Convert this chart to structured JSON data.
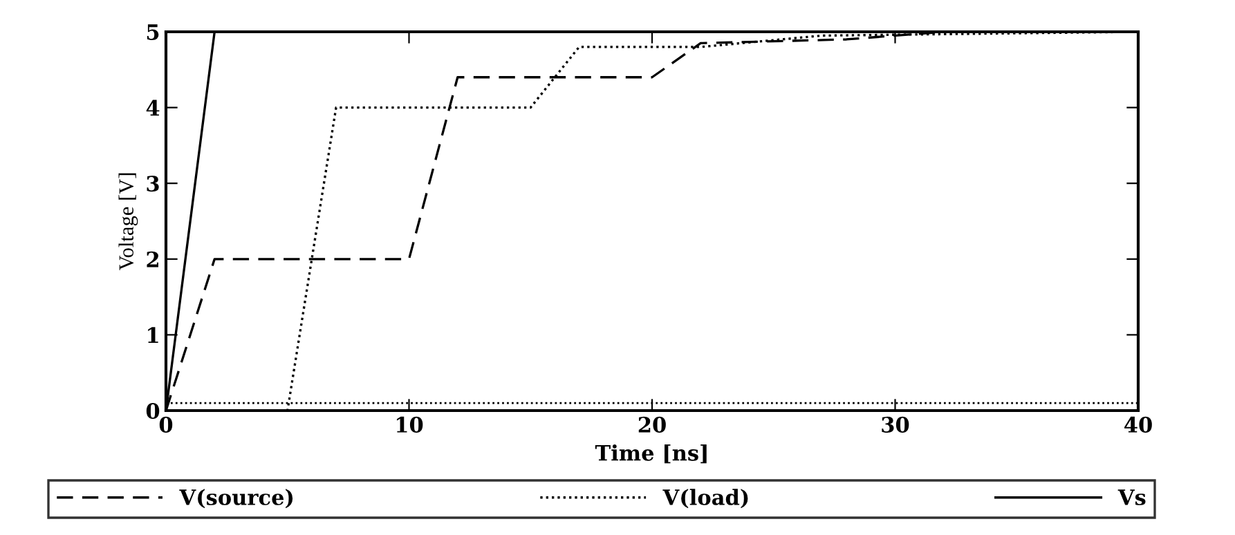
{
  "chart_data": {
    "type": "line",
    "xlabel": "Time [ns]",
    "ylabel": "Voltage [V]",
    "xlim": [
      0,
      40
    ],
    "ylim": [
      0,
      5
    ],
    "xticks": [
      0,
      10,
      20,
      30,
      40
    ],
    "yticks": [
      0,
      1,
      2,
      3,
      4,
      5
    ],
    "legend": "bottom",
    "grid": false,
    "series": [
      {
        "name": "V(source)",
        "color": "#000000",
        "line_style": "dashed",
        "x": [
          0,
          2,
          10,
          12,
          20,
          22,
          28,
          32,
          40
        ],
        "values": [
          0,
          2,
          2,
          4.4,
          4.4,
          4.85,
          4.9,
          5,
          5
        ]
      },
      {
        "name": "V(load)",
        "color": "#000000",
        "line_style": "dotted",
        "x": [
          0,
          5,
          7,
          15,
          17,
          22,
          27,
          40
        ],
        "values": [
          0,
          0,
          4,
          4,
          4.8,
          4.8,
          4.95,
          5
        ]
      },
      {
        "name": "Vs",
        "color": "#000000",
        "line_style": "solid",
        "x": [
          0,
          2,
          40
        ],
        "values": [
          0,
          5,
          5
        ]
      }
    ],
    "ref_lines": [
      {
        "axis": "y",
        "value": 0.1,
        "label": null,
        "color": "#000000",
        "line_style": "dotted"
      }
    ]
  }
}
